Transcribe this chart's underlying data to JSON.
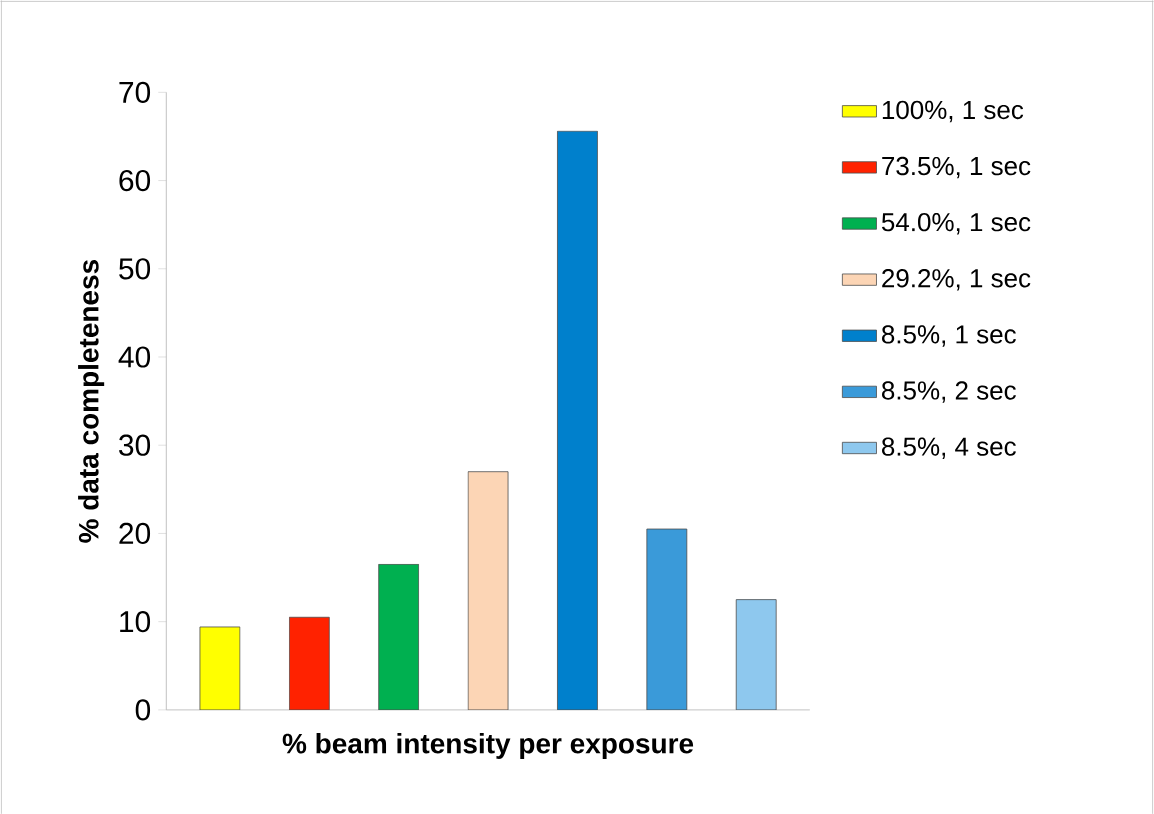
{
  "chart_data": {
    "type": "bar",
    "xlabel": "% beam intensity per exposure",
    "ylabel": "% data completeness",
    "categories": [
      null,
      null,
      null,
      null,
      null,
      null,
      null
    ],
    "series": [
      {
        "name": "100%,  1 sec",
        "color": "#ffff00",
        "values": [
          9.4,
          null,
          null,
          null,
          null,
          null,
          null
        ]
      },
      {
        "name": "73.5%, 1 sec",
        "color": "#ff2200",
        "values": [
          null,
          10.5,
          null,
          null,
          null,
          null,
          null
        ]
      },
      {
        "name": "54.0%, 1 sec",
        "color": "#00b050",
        "values": [
          null,
          null,
          16.5,
          null,
          null,
          null,
          null
        ]
      },
      {
        "name": "29.2%, 1 sec",
        "color": "#fcd5b5",
        "values": [
          null,
          null,
          null,
          27,
          null,
          null,
          null
        ]
      },
      {
        "name": "8.5%, 1 sec",
        "color": "#0080cc",
        "values": [
          null,
          null,
          null,
          null,
          65.6,
          null,
          null
        ]
      },
      {
        "name": "8.5%, 2 sec",
        "color": "#3a9ad9",
        "values": [
          null,
          null,
          null,
          null,
          null,
          20.5,
          null
        ]
      },
      {
        "name": "8.5%, 4 sec",
        "color": "#8ec8ee",
        "values": [
          null,
          null,
          null,
          null,
          null,
          null,
          12.5
        ]
      }
    ],
    "ylim": [
      0,
      70
    ],
    "yticks": [
      0,
      10,
      20,
      30,
      40,
      50,
      60,
      70
    ],
    "grid": false,
    "legend": "right",
    "tick_labels": "y"
  }
}
